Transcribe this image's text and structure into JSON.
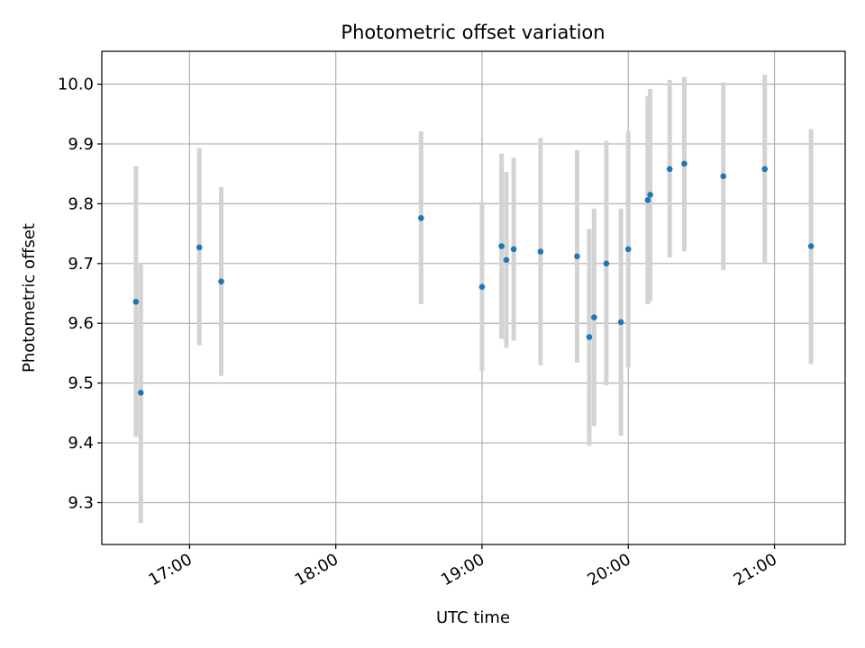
{
  "chart_data": {
    "type": "scatter",
    "title": "Photometric offset variation",
    "xlabel": "UTC time",
    "ylabel": "Photometric offset",
    "x_axis": "time (hours UTC, HH:MM)",
    "xlim": [
      "16:24",
      "21:29"
    ],
    "ylim": [
      9.23,
      10.055
    ],
    "x_ticks": [
      "17:00",
      "18:00",
      "19:00",
      "20:00",
      "21:00"
    ],
    "y_ticks": [
      "9.3",
      "9.4",
      "9.5",
      "9.6",
      "9.7",
      "9.8",
      "9.9",
      "10.0"
    ],
    "grid": true,
    "legend": "none",
    "colors": {
      "point": "#1f77b4",
      "error_bar": "#d3d3d3",
      "grid": "#b0b0b0"
    },
    "series": [
      {
        "points": [
          {
            "x": "16:38",
            "y": 9.636,
            "ylow": 9.41,
            "yhigh": 9.863
          },
          {
            "x": "16:40",
            "y": 9.484,
            "ylow": 9.266,
            "yhigh": 9.7
          },
          {
            "x": "17:04",
            "y": 9.727,
            "ylow": 9.563,
            "yhigh": 9.893
          },
          {
            "x": "17:13",
            "y": 9.67,
            "ylow": 9.512,
            "yhigh": 9.828
          },
          {
            "x": "18:35",
            "y": 9.776,
            "ylow": 9.632,
            "yhigh": 9.921
          },
          {
            "x": "19:00",
            "y": 9.661,
            "ylow": 9.52,
            "yhigh": 9.803
          },
          {
            "x": "19:08",
            "y": 9.729,
            "ylow": 9.574,
            "yhigh": 9.884
          },
          {
            "x": "19:10",
            "y": 9.706,
            "ylow": 9.559,
            "yhigh": 9.853
          },
          {
            "x": "19:13",
            "y": 9.724,
            "ylow": 9.571,
            "yhigh": 9.877
          },
          {
            "x": "19:24",
            "y": 9.72,
            "ylow": 9.53,
            "yhigh": 9.91
          },
          {
            "x": "19:39",
            "y": 9.712,
            "ylow": 9.534,
            "yhigh": 9.89
          },
          {
            "x": "19:44",
            "y": 9.577,
            "ylow": 9.395,
            "yhigh": 9.758
          },
          {
            "x": "19:46",
            "y": 9.61,
            "ylow": 9.428,
            "yhigh": 9.792
          },
          {
            "x": "19:51",
            "y": 9.7,
            "ylow": 9.496,
            "yhigh": 9.905
          },
          {
            "x": "19:57",
            "y": 9.602,
            "ylow": 9.412,
            "yhigh": 9.792
          },
          {
            "x": "20:00",
            "y": 9.724,
            "ylow": 9.526,
            "yhigh": 9.922
          },
          {
            "x": "20:08",
            "y": 9.806,
            "ylow": 9.632,
            "yhigh": 9.98
          },
          {
            "x": "20:09",
            "y": 9.815,
            "ylow": 9.637,
            "yhigh": 9.992
          },
          {
            "x": "20:17",
            "y": 9.858,
            "ylow": 9.71,
            "yhigh": 10.007
          },
          {
            "x": "20:23",
            "y": 9.867,
            "ylow": 9.72,
            "yhigh": 10.012
          },
          {
            "x": "20:39",
            "y": 9.846,
            "ylow": 9.689,
            "yhigh": 10.003
          },
          {
            "x": "20:56",
            "y": 9.858,
            "ylow": 9.7,
            "yhigh": 10.016
          },
          {
            "x": "21:15",
            "y": 9.729,
            "ylow": 9.532,
            "yhigh": 9.925
          }
        ]
      }
    ]
  }
}
